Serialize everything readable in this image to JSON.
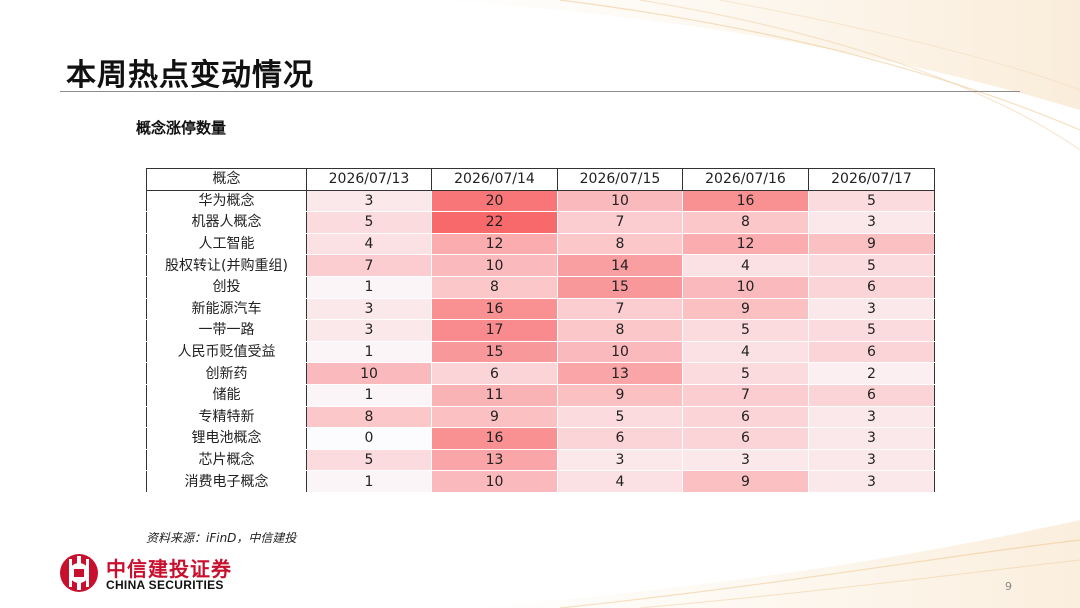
{
  "title": "本周热点变动情况",
  "subtitle": "概念涨停数量",
  "table": {
    "corner_label": "概念",
    "dates": [
      "2026/07/13",
      "2026/07/14",
      "2026/07/15",
      "2026/07/16",
      "2026/07/17"
    ],
    "rows": [
      {
        "concept": "华为概念",
        "values": [
          3,
          20,
          10,
          16,
          5
        ]
      },
      {
        "concept": "机器人概念",
        "values": [
          5,
          22,
          7,
          8,
          3
        ]
      },
      {
        "concept": "人工智能",
        "values": [
          4,
          12,
          8,
          12,
          9
        ]
      },
      {
        "concept": "股权转让(并购重组)",
        "values": [
          7,
          10,
          14,
          4,
          5
        ]
      },
      {
        "concept": "创投",
        "values": [
          1,
          8,
          15,
          10,
          6
        ]
      },
      {
        "concept": "新能源汽车",
        "values": [
          3,
          16,
          7,
          9,
          3
        ]
      },
      {
        "concept": "一带一路",
        "values": [
          3,
          17,
          8,
          5,
          5
        ]
      },
      {
        "concept": "人民币贬值受益",
        "values": [
          1,
          15,
          10,
          4,
          6
        ]
      },
      {
        "concept": "创新药",
        "values": [
          10,
          6,
          13,
          5,
          2
        ]
      },
      {
        "concept": "储能",
        "values": [
          1,
          11,
          9,
          7,
          6
        ]
      },
      {
        "concept": "专精特新",
        "values": [
          8,
          9,
          5,
          6,
          3
        ]
      },
      {
        "concept": "锂电池概念",
        "values": [
          0,
          16,
          6,
          6,
          3
        ]
      },
      {
        "concept": "芯片概念",
        "values": [
          5,
          13,
          3,
          3,
          3
        ]
      },
      {
        "concept": "消费电子概念",
        "values": [
          1,
          10,
          4,
          9,
          3
        ]
      }
    ]
  },
  "source": "资料来源：iFinD，中信建投",
  "logo": {
    "name_cn": "中信建投证券",
    "name_en": "CHINA SECURITIES"
  },
  "page_number": "9",
  "colors": {
    "accent": "#c8102e",
    "heat_max": "#f8696b",
    "heat_min": "#fcfcff"
  }
}
